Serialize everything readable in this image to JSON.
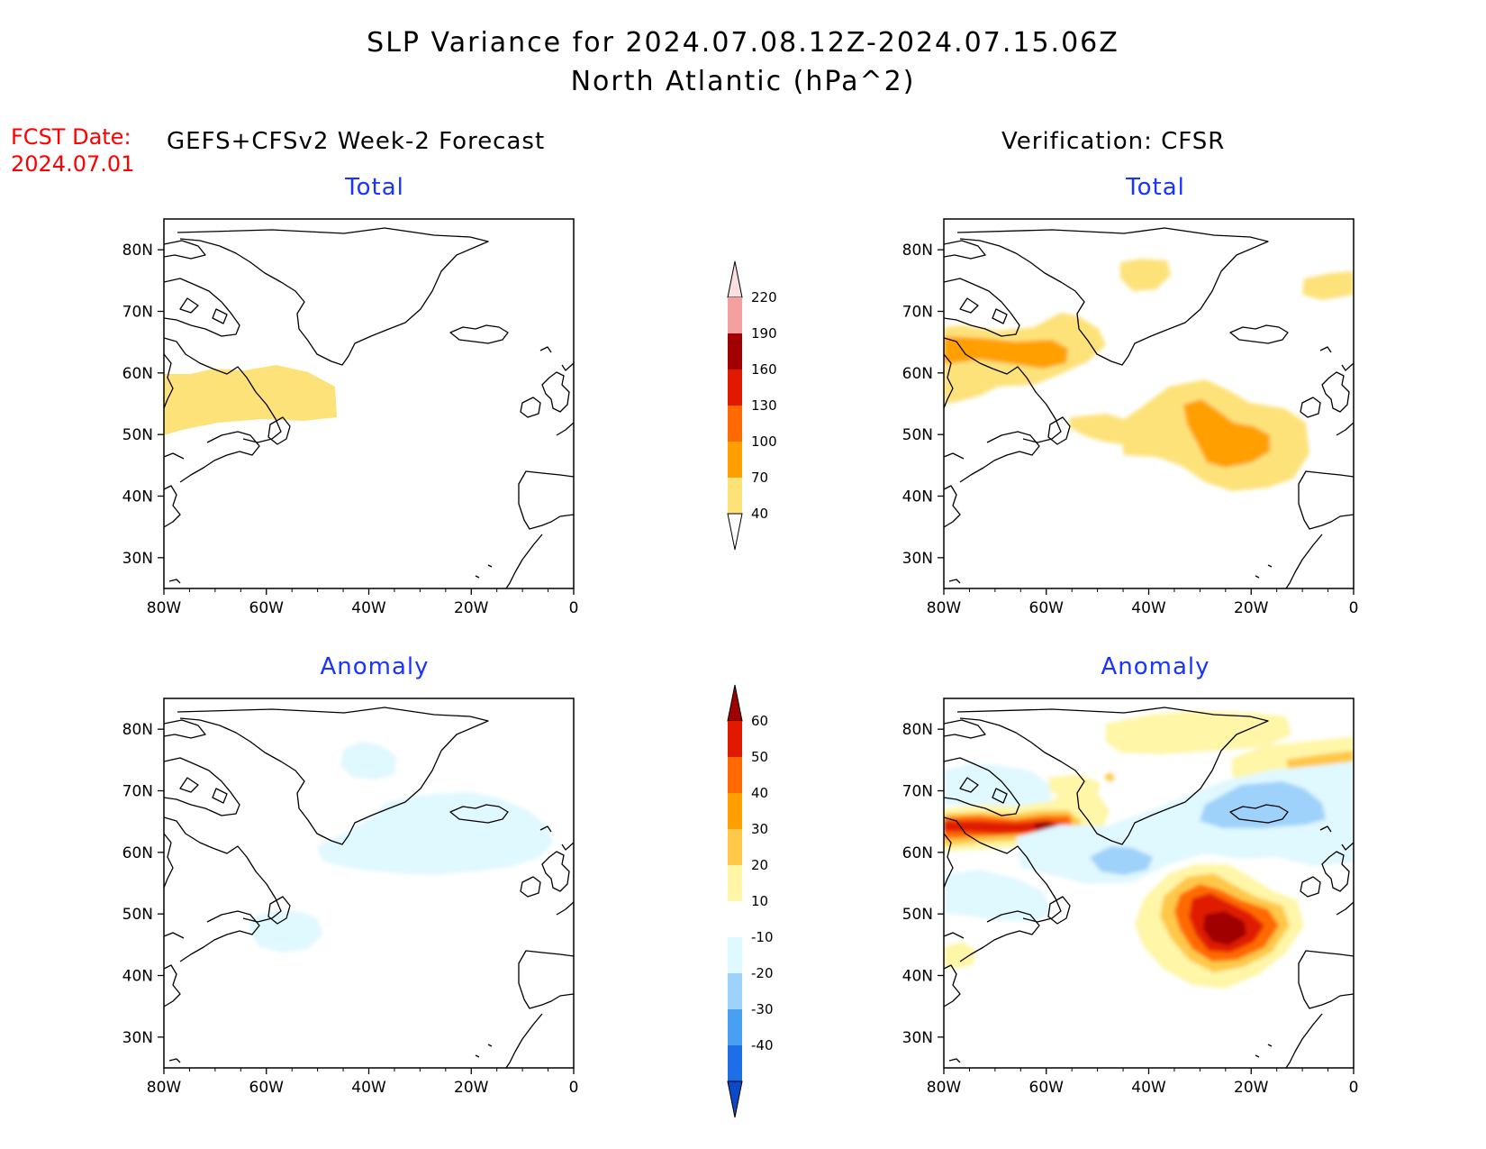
{
  "title_line1": "SLP Variance for 2024.07.08.12Z-2024.07.15.06Z",
  "title_line2": "North Atlantic (hPa^2)",
  "fcst_label": "FCST Date:",
  "fcst_date": "2024.07.01",
  "left_header": "GEFS+CFSv2 Week-2 Forecast",
  "right_header": "Verification: CFSR",
  "panels": {
    "fc_total": "Total",
    "fc_anom": "Anomaly",
    "ver_total": "Total",
    "ver_anom": "Anomaly"
  },
  "axes": {
    "lon_labels": [
      "80W",
      "60W",
      "40W",
      "20W",
      "0"
    ],
    "lat_labels": [
      "80N",
      "70N",
      "60N",
      "50N",
      "40N",
      "30N"
    ]
  },
  "colorbar_total": {
    "levels": [
      "220",
      "190",
      "160",
      "130",
      "100",
      "70",
      "40"
    ],
    "colors": [
      "#fce0e0",
      "#f4a0a0",
      "#a00000",
      "#e01a00",
      "#ff6a00",
      "#ffa000",
      "#fde27a"
    ]
  },
  "colorbar_anom": {
    "levels": [
      "60",
      "50",
      "40",
      "30",
      "20",
      "10",
      "-10",
      "-20",
      "-30",
      "-40"
    ],
    "colors": [
      "#a00000",
      "#e01a00",
      "#ff6a00",
      "#ffa000",
      "#ffc84a",
      "#fff6a8",
      "#ffffff",
      "#e0f8ff",
      "#9fd2fa",
      "#4aa0f0",
      "#1e6ee8",
      "#0a4ac8"
    ]
  }
}
